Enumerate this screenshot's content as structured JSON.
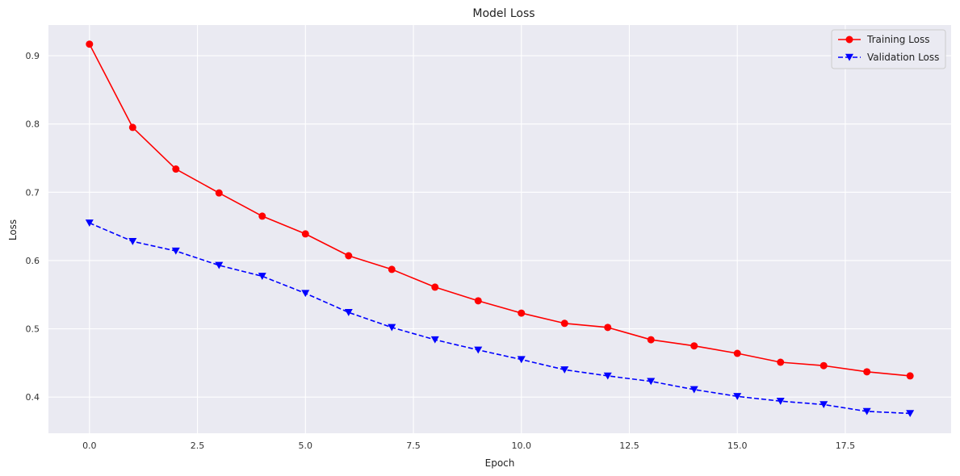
{
  "chart_data": {
    "type": "line",
    "title": "Model Loss",
    "xlabel": "Epoch",
    "ylabel": "Loss",
    "xlim": [
      -0.95,
      19.95
    ],
    "ylim": [
      0.347,
      0.945
    ],
    "xticks": [
      "0.0",
      "2.5",
      "5.0",
      "7.5",
      "10.0",
      "12.5",
      "15.0",
      "17.5"
    ],
    "yticks": [
      "0.4",
      "0.5",
      "0.6",
      "0.7",
      "0.8",
      "0.9"
    ],
    "grid": true,
    "legend_position": "top-right",
    "x": [
      0,
      1,
      2,
      3,
      4,
      5,
      6,
      7,
      8,
      9,
      10,
      11,
      12,
      13,
      14,
      15,
      16,
      17,
      18,
      19
    ],
    "series": [
      {
        "name": "Training Loss",
        "color": "#ff0000",
        "line": "solid",
        "marker": "circle",
        "values": [
          0.917,
          0.795,
          0.734,
          0.699,
          0.665,
          0.639,
          0.607,
          0.587,
          0.561,
          0.541,
          0.523,
          0.508,
          0.502,
          0.484,
          0.475,
          0.464,
          0.451,
          0.446,
          0.437,
          0.431
        ]
      },
      {
        "name": "Validation Loss",
        "color": "#0000ff",
        "line": "dashed",
        "marker": "triangle-down",
        "values": [
          0.655,
          0.628,
          0.614,
          0.593,
          0.577,
          0.552,
          0.524,
          0.502,
          0.484,
          0.469,
          0.455,
          0.44,
          0.431,
          0.423,
          0.411,
          0.401,
          0.394,
          0.389,
          0.379,
          0.376
        ]
      }
    ]
  }
}
